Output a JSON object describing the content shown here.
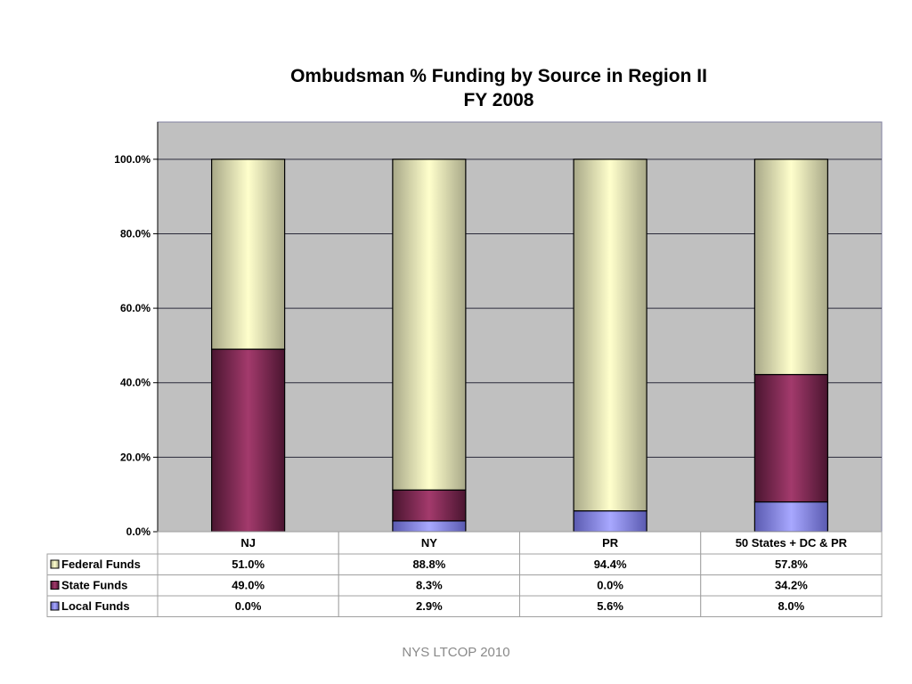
{
  "page": {
    "footer": "NYS LTCOP 2010"
  },
  "chart_data": {
    "type": "bar",
    "stacked": true,
    "title": [
      "Ombudsman % Funding by Source in Region II",
      "FY 2008"
    ],
    "categories": [
      "NJ",
      "NY",
      "PR",
      "50 States + DC & PR"
    ],
    "series": [
      {
        "name": "Local Funds",
        "values": [
          0.0,
          2.9,
          5.6,
          8.0
        ],
        "labels": [
          "0.0%",
          "2.9%",
          "5.6%",
          "8.0%"
        ],
        "color": "#9999ff"
      },
      {
        "name": "State Funds",
        "values": [
          49.0,
          8.3,
          0.0,
          34.2
        ],
        "labels": [
          "49.0%",
          "8.3%",
          "0.0%",
          "34.2%"
        ],
        "color": "#993366"
      },
      {
        "name": "Federal Funds",
        "values": [
          51.0,
          88.8,
          94.4,
          57.8
        ],
        "labels": [
          "51.0%",
          "88.8%",
          "94.4%",
          "57.8%"
        ],
        "color": "#ffffcc"
      }
    ],
    "table_rows": [
      "Federal Funds",
      "State Funds",
      "Local Funds"
    ],
    "ylim": [
      0,
      110
    ],
    "yticks": [
      0,
      20,
      40,
      60,
      80,
      100
    ],
    "ytick_labels": [
      "0.0%",
      "20.0%",
      "40.0%",
      "60.0%",
      "80.0%",
      "100.0%"
    ],
    "grid": true,
    "plot_background": "#c0c0c0",
    "legend": "data-table"
  }
}
